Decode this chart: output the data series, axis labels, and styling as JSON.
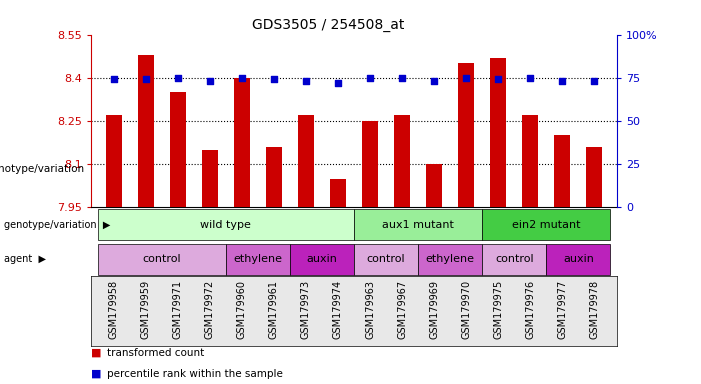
{
  "title": "GDS3505 / 254508_at",
  "samples": [
    "GSM179958",
    "GSM179959",
    "GSM179971",
    "GSM179972",
    "GSM179960",
    "GSM179961",
    "GSM179973",
    "GSM179974",
    "GSM179963",
    "GSM179967",
    "GSM179969",
    "GSM179970",
    "GSM179975",
    "GSM179976",
    "GSM179977",
    "GSM179978"
  ],
  "bar_values": [
    8.27,
    8.48,
    8.35,
    8.15,
    8.4,
    8.16,
    8.27,
    8.05,
    8.25,
    8.27,
    8.1,
    8.45,
    8.47,
    8.27,
    8.2,
    8.16
  ],
  "dot_values": [
    74,
    74,
    75,
    73,
    75,
    74,
    73,
    72,
    75,
    75,
    73,
    75,
    74,
    75,
    73,
    73
  ],
  "ylim_left": [
    7.95,
    8.55
  ],
  "ylim_right": [
    0,
    100
  ],
  "yticks_left": [
    7.95,
    8.1,
    8.25,
    8.4,
    8.55
  ],
  "yticks_right": [
    0,
    25,
    50,
    75,
    100
  ],
  "ytick_labels_right": [
    "0",
    "25",
    "50",
    "75",
    "100%"
  ],
  "bar_color": "#CC0000",
  "dot_color": "#0000CC",
  "genotype_groups": [
    {
      "label": "wild type",
      "start": 0,
      "end": 8,
      "color": "#ccffcc"
    },
    {
      "label": "aux1 mutant",
      "start": 8,
      "end": 12,
      "color": "#99ee99"
    },
    {
      "label": "ein2 mutant",
      "start": 12,
      "end": 16,
      "color": "#44cc44"
    }
  ],
  "agent_groups": [
    {
      "label": "control",
      "start": 0,
      "end": 4,
      "color": "#ddaadd"
    },
    {
      "label": "ethylene",
      "start": 4,
      "end": 6,
      "color": "#cc66cc"
    },
    {
      "label": "auxin",
      "start": 6,
      "end": 8,
      "color": "#bb22bb"
    },
    {
      "label": "control",
      "start": 8,
      "end": 10,
      "color": "#ddaadd"
    },
    {
      "label": "ethylene",
      "start": 10,
      "end": 12,
      "color": "#cc66cc"
    },
    {
      "label": "control",
      "start": 12,
      "end": 14,
      "color": "#ddaadd"
    },
    {
      "label": "auxin",
      "start": 14,
      "end": 16,
      "color": "#bb22bb"
    }
  ],
  "legend_items": [
    {
      "label": "transformed count",
      "color": "#CC0000"
    },
    {
      "label": "percentile rank within the sample",
      "color": "#0000CC"
    }
  ],
  "grid_dotted_at": [
    8.1,
    8.25,
    8.4
  ]
}
